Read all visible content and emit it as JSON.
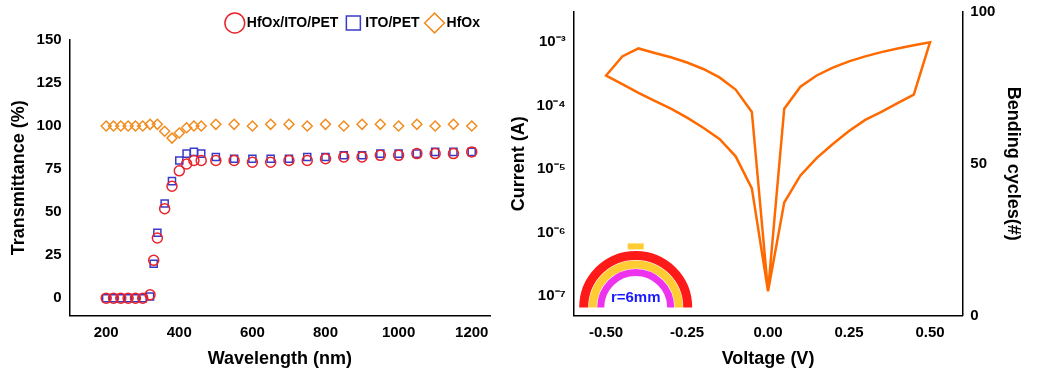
{
  "chart_data": [
    {
      "type": "scatter",
      "x_label": "Wavelength (nm)",
      "y_label": "Transmittance (%)",
      "xlim": [
        100,
        1250
      ],
      "xticks": [
        200,
        400,
        600,
        800,
        1000,
        1200
      ],
      "ylim": [
        -10,
        150
      ],
      "yticks": [
        0,
        25,
        50,
        75,
        100,
        125,
        150
      ],
      "grid": false,
      "legend": "upper right",
      "series": [
        {
          "name": "HfOx/ITO/PET",
          "color": "#e8232a",
          "marker": "circle",
          "x": [
            200,
            220,
            240,
            260,
            280,
            300,
            320,
            330,
            340,
            360,
            380,
            400,
            420,
            440,
            460,
            500,
            550,
            600,
            650,
            700,
            750,
            800,
            850,
            900,
            950,
            1000,
            1050,
            1100,
            1150,
            1200
          ],
          "values": [
            0,
            0,
            0,
            0,
            0,
            0,
            2,
            22,
            35,
            52,
            65,
            74,
            78,
            80,
            80,
            80,
            80,
            79,
            79,
            80,
            80,
            81,
            82,
            82,
            83,
            83,
            84,
            84,
            84,
            85
          ]
        },
        {
          "name": "ITO/PET",
          "color": "#3a3ac8",
          "marker": "square",
          "x": [
            200,
            220,
            240,
            260,
            280,
            300,
            320,
            330,
            340,
            360,
            380,
            400,
            420,
            440,
            460,
            500,
            550,
            600,
            650,
            700,
            750,
            800,
            850,
            900,
            950,
            1000,
            1050,
            1100,
            1150,
            1200
          ],
          "values": [
            0,
            0,
            0,
            0,
            0,
            0,
            1,
            20,
            38,
            55,
            68,
            80,
            84,
            85,
            84,
            82,
            81,
            81,
            81,
            81,
            82,
            82,
            83,
            83,
            84,
            84,
            84,
            85,
            85,
            85
          ]
        },
        {
          "name": "HfOx",
          "color": "#f28c1e",
          "marker": "diamond",
          "x": [
            200,
            220,
            240,
            260,
            280,
            300,
            320,
            340,
            360,
            380,
            400,
            420,
            440,
            460,
            500,
            550,
            600,
            650,
            700,
            750,
            800,
            850,
            900,
            950,
            1000,
            1050,
            1100,
            1150,
            1200
          ],
          "values": [
            100,
            100,
            100,
            100,
            100,
            100,
            101,
            101,
            97,
            93,
            96,
            99,
            100,
            100,
            101,
            101,
            100,
            101,
            101,
            100,
            101,
            100,
            101,
            101,
            100,
            101,
            100,
            101,
            100
          ]
        }
      ]
    },
    {
      "type": "line",
      "x_label": "Voltage (V)",
      "y_label": "Current (A)",
      "y2_label": "Bending cycles(#)",
      "log": "y",
      "xlim": [
        -0.6,
        0.6
      ],
      "xticks": [
        {
          "value": -0.5,
          "label": "-0.50"
        },
        -0.25,
        {
          "value": 0,
          "label": "0.00"
        },
        0.25,
        {
          "value": 0.5,
          "label": "0.50"
        }
      ],
      "ylim": [
        5e-08,
        0.003
      ],
      "yticks": [
        {
          "value": 1e-07,
          "label": "10⁻⁷"
        },
        {
          "value": 1e-06,
          "label": "10⁻⁶"
        },
        {
          "value": 1e-05,
          "label": "10⁻⁵"
        },
        {
          "value": 0.0001,
          "label": "10⁻⁴"
        },
        {
          "value": 0.001,
          "label": "10⁻³"
        }
      ],
      "y2lim": [
        0,
        100
      ],
      "y2ticks": [
        0,
        50,
        100
      ],
      "grid": false,
      "annotation": "r=6mm",
      "series": [
        {
          "color": "#ff6a00",
          "marker": "none",
          "line_style": "solid",
          "x": [
            0,
            0.05,
            0.1,
            0.15,
            0.2,
            0.25,
            0.3,
            0.35,
            0.4,
            0.45,
            0.5,
            0.45,
            0.4,
            0.35,
            0.3,
            0.25,
            0.2,
            0.15,
            0.1,
            0.05,
            0,
            -0.05,
            -0.1,
            -0.15,
            -0.2,
            -0.25,
            -0.3,
            -0.35,
            -0.4,
            -0.45,
            -0.5,
            -0.45,
            -0.4,
            -0.35,
            -0.3,
            -0.25,
            -0.2,
            -0.15,
            -0.1,
            -0.05,
            0
          ],
          "values": [
            1.2e-07,
            3e-06,
            8e-06,
            1.5e-05,
            2.5e-05,
            4e-05,
            6e-05,
            8e-05,
            0.00011,
            0.00015,
            0.001,
            0.0009,
            0.0008,
            0.0007,
            0.0006,
            0.0005,
            0.0004,
            0.0003,
            0.0002,
            9e-05,
            1.2e-07,
            8e-05,
            0.00018,
            0.00028,
            0.00038,
            0.00048,
            0.00058,
            0.00068,
            0.0008,
            0.0006,
            0.0003,
            0.00022,
            0.00016,
            0.00012,
            9e-05,
            6.5e-05,
            4.5e-05,
            3e-05,
            1.6e-05,
            5e-06,
            1.2e-07
          ]
        }
      ]
    }
  ]
}
